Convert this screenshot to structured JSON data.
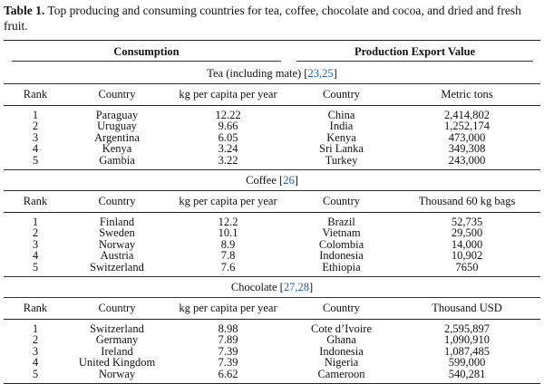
{
  "caption": {
    "label": "Table 1.",
    "text": " Top producing and consuming countries for tea, coffee, chocolate and cocoa, and dried and fresh fruit."
  },
  "header": {
    "consumption": "Consumption",
    "production": "Production Export Value"
  },
  "columns": {
    "rank": "Rank",
    "country": "Country",
    "per_capita": "kg per capita per year",
    "country2": "Country"
  },
  "sections": [
    {
      "title": "Tea (including mate) [",
      "refs": "23,25",
      "close": "]",
      "unit": "Metric tons",
      "rows": [
        {
          "rank": "1",
          "country": "Paraguay",
          "kg": "12.22",
          "pcountry": "China",
          "value": "2,414,802"
        },
        {
          "rank": "2",
          "country": "Uruguay",
          "kg": "9.66",
          "pcountry": "India",
          "value": "1,252,174"
        },
        {
          "rank": "3",
          "country": "Argentina",
          "kg": "6.05",
          "pcountry": "Kenya",
          "value": "473,000"
        },
        {
          "rank": "4",
          "country": "Kenya",
          "kg": "3.24",
          "pcountry": "Sri Lanka",
          "value": "349,308"
        },
        {
          "rank": "5",
          "country": "Gambia",
          "kg": "3.22",
          "pcountry": "Turkey",
          "value": "243,000"
        }
      ]
    },
    {
      "title": "Coffee [",
      "refs": "26",
      "close": "]",
      "unit": "Thousand 60 kg bags",
      "rows": [
        {
          "rank": "1",
          "country": "Finland",
          "kg": "12.2",
          "pcountry": "Brazil",
          "value": "52,735"
        },
        {
          "rank": "2",
          "country": "Sweden",
          "kg": "10.1",
          "pcountry": "Vietnam",
          "value": "29,500"
        },
        {
          "rank": "3",
          "country": "Norway",
          "kg": "8.9",
          "pcountry": "Colombia",
          "value": "14,000"
        },
        {
          "rank": "4",
          "country": "Austria",
          "kg": "7.8",
          "pcountry": "Indonesia",
          "value": "10,902"
        },
        {
          "rank": "5",
          "country": "Switzerland",
          "kg": "7.6",
          "pcountry": "Ethiopia",
          "value": "7650"
        }
      ]
    },
    {
      "title": "Chocolate [",
      "refs": "27,28",
      "close": "]",
      "unit": "Thousand USD",
      "rows": [
        {
          "rank": "1",
          "country": "Switzerland",
          "kg": "8.98",
          "pcountry": "Cote d’Ivoire",
          "value": "2,595,897"
        },
        {
          "rank": "2",
          "country": "Germany",
          "kg": "7.89",
          "pcountry": "Ghana",
          "value": "1,090,910"
        },
        {
          "rank": "3",
          "country": "Ireland",
          "kg": "7.39",
          "pcountry": "Indonesia",
          "value": "1,087,485"
        },
        {
          "rank": "4",
          "country": "United Kingdom",
          "kg": "7.39",
          "pcountry": "Nigeria",
          "value": "599,000"
        },
        {
          "rank": "5",
          "country": "Norway",
          "kg": "6.62",
          "pcountry": "Cameroon",
          "value": "540,281"
        }
      ]
    }
  ]
}
